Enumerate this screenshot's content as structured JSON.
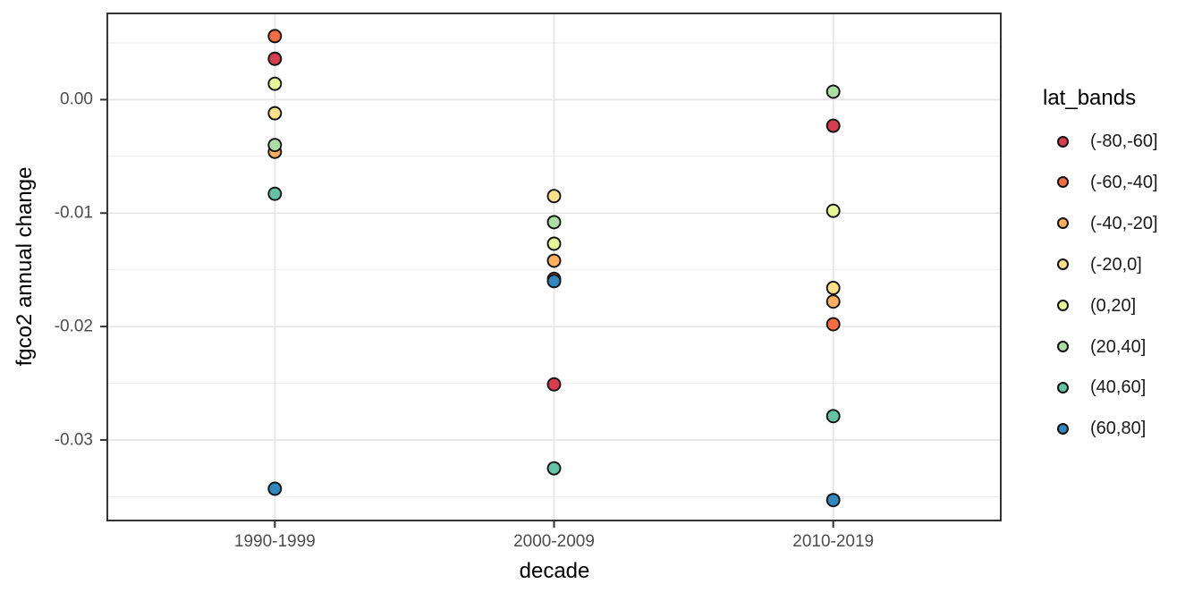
{
  "chart_data": {
    "type": "scatter",
    "title": "",
    "xlabel": "decade",
    "ylabel": "fgco2 annual change",
    "categories": [
      "1990-1999",
      "2000-2009",
      "2010-2019"
    ],
    "series": [
      {
        "name": "(-80,-60]",
        "color": "#D53E4F",
        "values": [
          0.0036,
          -0.0251,
          -0.0023
        ]
      },
      {
        "name": "(-60,-40]",
        "color": "#F46D43",
        "values": [
          0.0056,
          -0.0158,
          -0.0198
        ]
      },
      {
        "name": "(-40,-20]",
        "color": "#FDAE61",
        "values": [
          -0.0046,
          -0.0142,
          -0.0178
        ]
      },
      {
        "name": "(-20,0]",
        "color": "#FEE08B",
        "values": [
          -0.0012,
          -0.0085,
          -0.0166
        ]
      },
      {
        "name": "(0,20]",
        "color": "#E6F598",
        "values": [
          0.0014,
          -0.0127,
          -0.0098
        ]
      },
      {
        "name": "(20,40]",
        "color": "#ABDDA4",
        "values": [
          -0.004,
          -0.0108,
          0.0007
        ]
      },
      {
        "name": "(40,60]",
        "color": "#66C2A5",
        "values": [
          -0.0083,
          -0.0325,
          -0.0279
        ]
      },
      {
        "name": "(60,80]",
        "color": "#3288BD",
        "values": [
          -0.0343,
          -0.016,
          -0.0353
        ]
      }
    ],
    "ylim": [
      -0.0371,
      0.0076
    ],
    "yticks": [
      {
        "label": "0.00",
        "value": 0
      },
      {
        "label": "-0.01",
        "value": -0.01
      },
      {
        "label": "-0.02",
        "value": -0.02
      },
      {
        "label": "-0.03",
        "value": -0.03
      }
    ],
    "yticks_minor": [
      0.005,
      -0.005,
      -0.015,
      -0.025,
      -0.035
    ],
    "grid": true,
    "legend": {
      "title": "lat_bands",
      "position": "right"
    },
    "colors": {
      "panel_background": "#FFFFFF",
      "panel_border": "#333333",
      "grid_major": "#E6E6E6",
      "grid_minor": "#EFEFEF",
      "tick": "#333333",
      "axis_text": "#4D4D4D",
      "axis_title": "#000000",
      "point_stroke": "#111111"
    }
  }
}
